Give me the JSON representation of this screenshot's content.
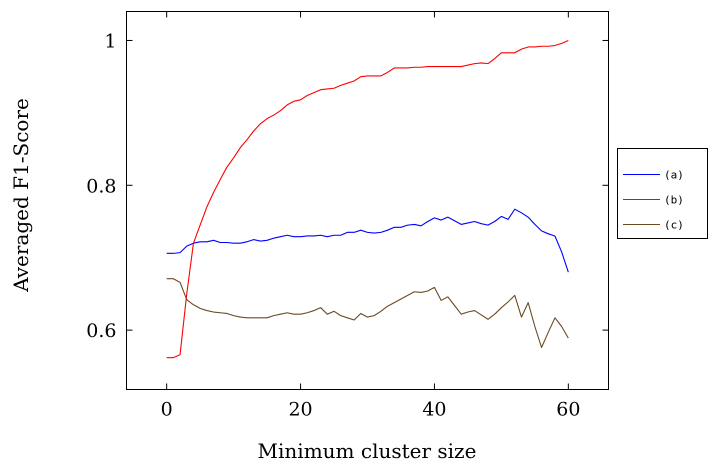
{
  "chart_data": {
    "type": "line",
    "xlabel": "Minimum cluster size",
    "ylabel": "Averaged F1-Score",
    "xlim": [
      -6,
      66
    ],
    "ylim": [
      0.518,
      1.04
    ],
    "xticks": [
      0,
      20,
      40,
      60
    ],
    "xtick_labels": [
      "0",
      "20",
      "40",
      "60"
    ],
    "yticks": [
      0.6,
      0.8,
      1.0
    ],
    "ytick_labels": [
      "0.6",
      "0.8",
      "1"
    ],
    "grid": false,
    "legend_position": "right, outside plot",
    "series": [
      {
        "name": "(a)",
        "color": "#0000ff",
        "x": [
          0,
          1,
          2,
          3,
          4,
          5,
          6,
          7,
          8,
          9,
          10,
          11,
          12,
          13,
          14,
          15,
          16,
          17,
          18,
          19,
          20,
          21,
          22,
          23,
          24,
          25,
          26,
          27,
          28,
          29,
          30,
          31,
          32,
          33,
          34,
          35,
          36,
          37,
          38,
          39,
          40,
          41,
          42,
          43,
          44,
          45,
          46,
          47,
          48,
          49,
          50,
          51,
          52,
          53,
          54,
          55,
          56,
          57,
          58,
          59,
          60
        ],
        "y": [
          0.706,
          0.706,
          0.707,
          0.716,
          0.72,
          0.722,
          0.722,
          0.724,
          0.721,
          0.721,
          0.72,
          0.72,
          0.722,
          0.725,
          0.723,
          0.724,
          0.727,
          0.729,
          0.731,
          0.729,
          0.729,
          0.73,
          0.73,
          0.731,
          0.729,
          0.731,
          0.731,
          0.735,
          0.735,
          0.738,
          0.735,
          0.734,
          0.735,
          0.738,
          0.742,
          0.742,
          0.745,
          0.746,
          0.744,
          0.75,
          0.755,
          0.752,
          0.756,
          0.751,
          0.746,
          0.748,
          0.75,
          0.747,
          0.745,
          0.75,
          0.757,
          0.753,
          0.767,
          0.762,
          0.756,
          0.746,
          0.737,
          0.733,
          0.73,
          0.708,
          0.68
        ]
      },
      {
        "name": "(b)",
        "color": "#ff0000",
        "x": [
          0,
          1,
          2,
          3,
          4,
          5,
          6,
          7,
          8,
          9,
          10,
          11,
          12,
          13,
          14,
          15,
          16,
          17,
          18,
          19,
          20,
          21,
          22,
          23,
          24,
          25,
          26,
          27,
          28,
          29,
          30,
          31,
          32,
          33,
          34,
          35,
          36,
          37,
          38,
          39,
          40,
          41,
          42,
          43,
          44,
          45,
          46,
          47,
          48,
          49,
          50,
          51,
          52,
          53,
          54,
          55,
          56,
          57,
          58,
          59,
          60
        ],
        "y": [
          0.562,
          0.562,
          0.566,
          0.65,
          0.72,
          0.745,
          0.77,
          0.79,
          0.808,
          0.825,
          0.838,
          0.852,
          0.863,
          0.875,
          0.885,
          0.892,
          0.897,
          0.903,
          0.911,
          0.916,
          0.918,
          0.924,
          0.928,
          0.932,
          0.933,
          0.934,
          0.938,
          0.941,
          0.944,
          0.95,
          0.951,
          0.951,
          0.951,
          0.956,
          0.962,
          0.962,
          0.962,
          0.963,
          0.963,
          0.964,
          0.964,
          0.964,
          0.964,
          0.964,
          0.964,
          0.966,
          0.968,
          0.969,
          0.968,
          0.975,
          0.983,
          0.983,
          0.983,
          0.988,
          0.991,
          0.991,
          0.992,
          0.992,
          0.993,
          0.996,
          1.0
        ]
      },
      {
        "name": "(c)",
        "color": "#6b4a24",
        "x": [
          0,
          1,
          2,
          3,
          4,
          5,
          6,
          7,
          8,
          9,
          10,
          11,
          12,
          13,
          14,
          15,
          16,
          17,
          18,
          19,
          20,
          21,
          22,
          23,
          24,
          25,
          26,
          27,
          28,
          29,
          30,
          31,
          32,
          33,
          34,
          35,
          36,
          37,
          38,
          39,
          40,
          41,
          42,
          43,
          44,
          45,
          46,
          47,
          48,
          49,
          50,
          51,
          52,
          53,
          54,
          55,
          56,
          57,
          58,
          59,
          60
        ],
        "y": [
          0.671,
          0.671,
          0.666,
          0.642,
          0.635,
          0.63,
          0.627,
          0.625,
          0.624,
          0.623,
          0.62,
          0.618,
          0.617,
          0.617,
          0.617,
          0.617,
          0.62,
          0.622,
          0.624,
          0.622,
          0.622,
          0.624,
          0.627,
          0.631,
          0.622,
          0.626,
          0.62,
          0.617,
          0.614,
          0.623,
          0.618,
          0.62,
          0.626,
          0.633,
          0.638,
          0.643,
          0.648,
          0.653,
          0.652,
          0.654,
          0.659,
          0.641,
          0.646,
          0.634,
          0.622,
          0.625,
          0.627,
          0.621,
          0.615,
          0.622,
          0.631,
          0.639,
          0.648,
          0.618,
          0.638,
          0.605,
          0.576,
          0.597,
          0.617,
          0.605,
          0.589
        ]
      }
    ]
  }
}
